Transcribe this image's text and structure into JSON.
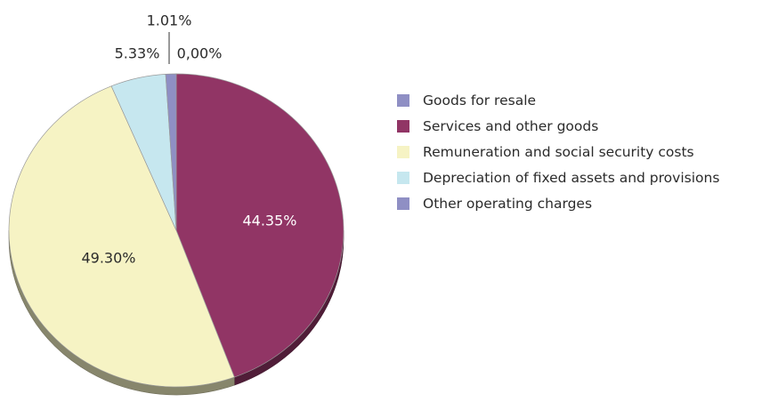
{
  "chart_data": {
    "type": "pie",
    "title": "",
    "slices": [
      {
        "label": "Goods for resale",
        "value": 0.0,
        "display": "0,00%",
        "color": "#8f8fc4"
      },
      {
        "label": "Services and other goods",
        "value": 44.35,
        "display": "44.35%",
        "color": "#913565"
      },
      {
        "label": "Remuneration and social security costs",
        "value": 49.3,
        "display": "49.30%",
        "color": "#f6f3c4"
      },
      {
        "label": "Depreciation of fixed assets and provisions",
        "value": 5.33,
        "display": "5.33%",
        "color": "#c6e7ef"
      },
      {
        "label": "Other operating charges",
        "value": 1.01,
        "display": "1.01%",
        "color": "#8f8fc4"
      }
    ],
    "legend_position": "right"
  }
}
